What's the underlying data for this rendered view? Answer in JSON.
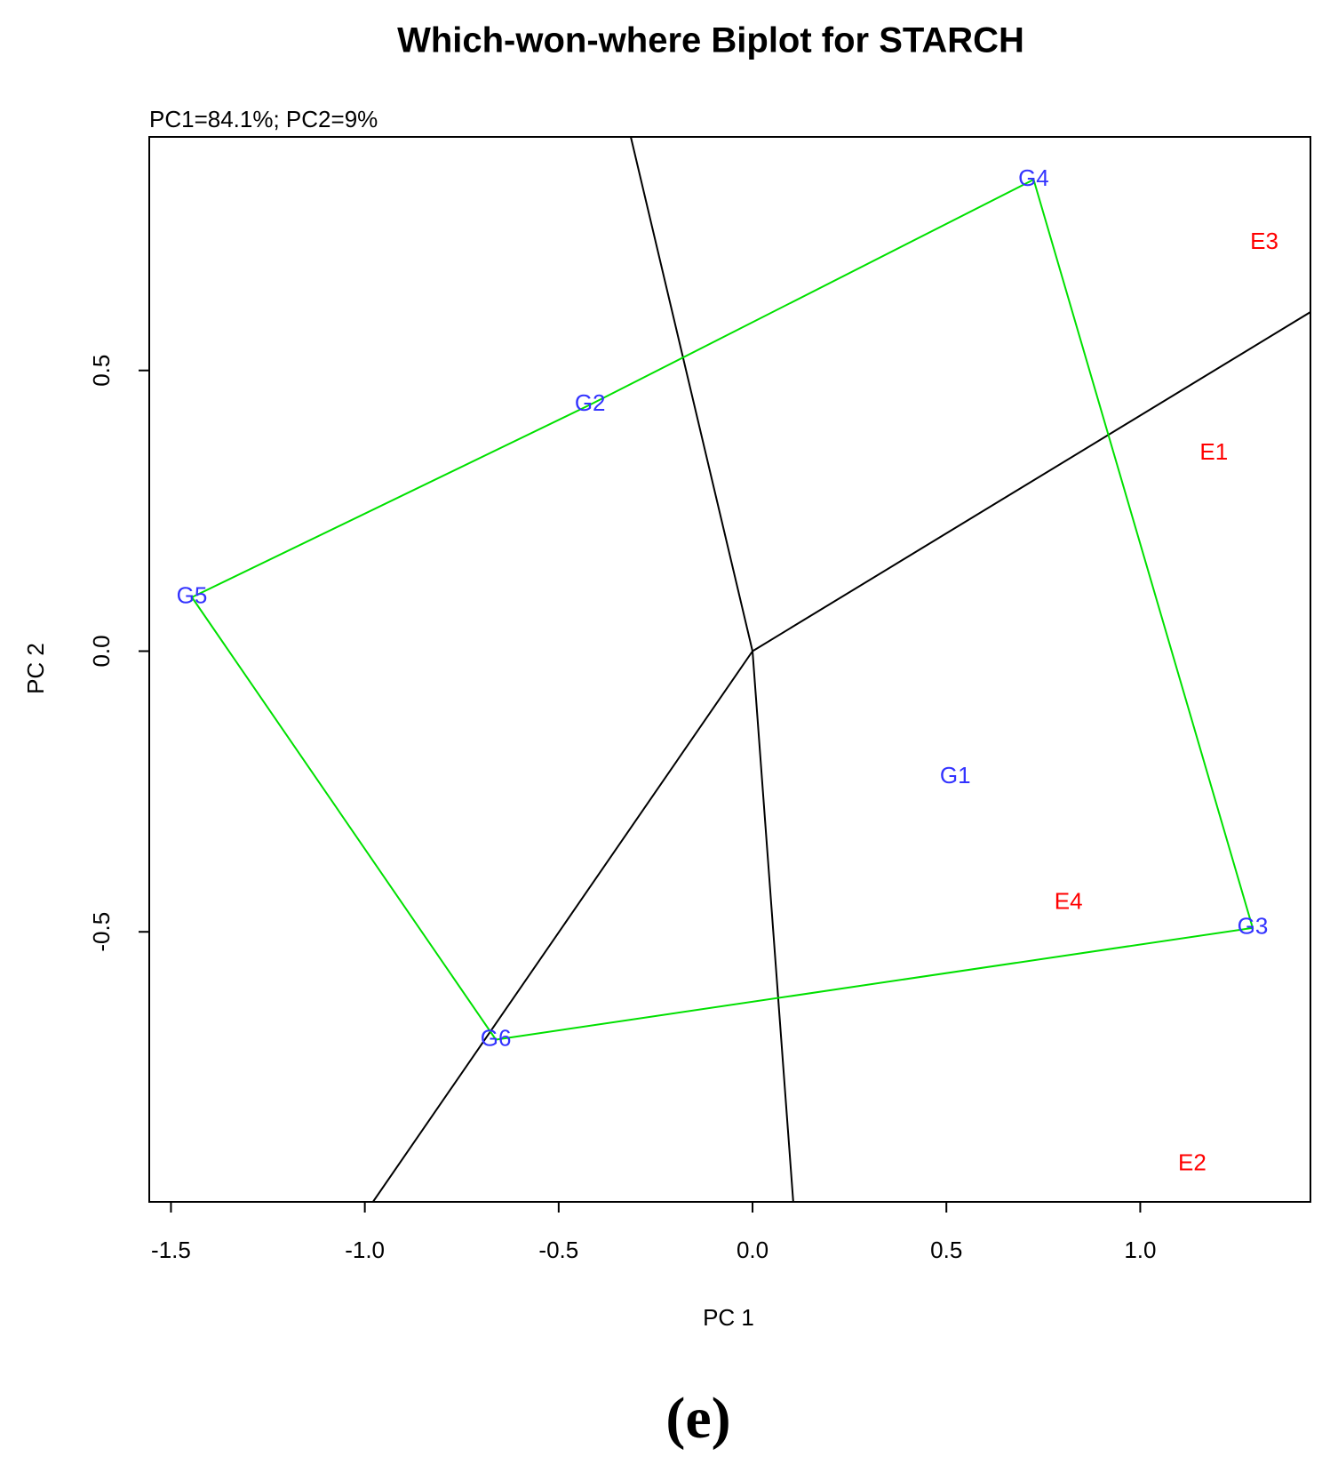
{
  "chart_data": {
    "type": "scatter",
    "title": "Which-won-where Biplot for STARCH",
    "subtitle": "PC1=84.1%; PC2=9%",
    "x_label": "PC 1",
    "y_label": "PC 2",
    "caption": "(e)",
    "xlim": [
      -1.556,
      1.439
    ],
    "ylim": [
      -0.981,
      0.916
    ],
    "xticks": [
      -1.5,
      {
        "value": -1,
        "label": "-1.0"
      },
      -0.5,
      {
        "value": 0,
        "label": "0.0"
      },
      0.5,
      {
        "value": 1,
        "label": "1.0"
      }
    ],
    "yticks": [
      -0.5,
      {
        "value": 0,
        "label": "0.0"
      },
      0.5
    ],
    "grid": false,
    "series": [
      {
        "color": "#3333ff",
        "labels": [
          "G1",
          "G2",
          "G3",
          "G4",
          "G5",
          "G6"
        ],
        "x": [
          0.523,
          -0.419,
          1.29,
          0.725,
          -1.446,
          -0.662
        ],
        "y": [
          -0.224,
          0.439,
          -0.493,
          0.84,
          0.096,
          -0.692
        ]
      },
      {
        "color": "#ff0000",
        "labels": [
          "E1",
          "E2",
          "E3",
          "E4"
        ],
        "x": [
          1.19,
          1.134,
          1.32,
          0.815
        ],
        "y": [
          0.352,
          -0.914,
          0.727,
          -0.448
        ]
      }
    ],
    "polygon": {
      "color": "#00e000",
      "x": [
        0.725,
        -0.419,
        -1.446,
        -0.662,
        1.29,
        0.725
      ],
      "y": [
        0.84,
        0.439,
        0.096,
        -0.692,
        -0.493,
        0.84
      ]
    },
    "rays": [
      {
        "color": "#000000",
        "x": [
          -0.314,
          0,
          0.105
        ],
        "y": [
          0.916,
          0,
          -0.981
        ]
      },
      {
        "color": "#000000",
        "x": [
          1.439,
          0,
          -0.979
        ],
        "y": [
          0.604,
          0,
          -0.981
        ]
      }
    ]
  }
}
